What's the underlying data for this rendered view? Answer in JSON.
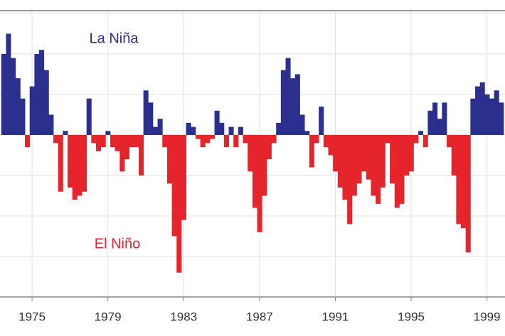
{
  "chart_data": {
    "type": "bar",
    "annotations": [
      {
        "text": "La Niña",
        "color": "#2b2f8e"
      },
      {
        "text": "El Niño",
        "color": "#e5252b"
      }
    ],
    "x": [
      1973.5,
      1973.75,
      1974,
      1974.25,
      1974.5,
      1974.75,
      1975,
      1975.25,
      1975.5,
      1975.75,
      1976,
      1976.25,
      1976.5,
      1976.75,
      1977,
      1977.25,
      1977.5,
      1977.75,
      1978,
      1978.25,
      1978.5,
      1978.75,
      1979,
      1979.25,
      1979.5,
      1979.75,
      1980,
      1980.25,
      1980.5,
      1980.75,
      1981,
      1981.25,
      1981.5,
      1981.75,
      1982,
      1982.25,
      1982.5,
      1982.75,
      1983,
      1983.25,
      1983.5,
      1983.75,
      1984,
      1984.25,
      1984.5,
      1984.75,
      1985,
      1985.25,
      1985.5,
      1985.75,
      1986,
      1986.25,
      1986.5,
      1986.75,
      1987,
      1987.25,
      1987.5,
      1987.75,
      1988,
      1988.25,
      1988.5,
      1988.75,
      1989,
      1989.25,
      1989.5,
      1989.75,
      1990,
      1990.25,
      1990.5,
      1990.75,
      1991,
      1991.25,
      1991.5,
      1991.75,
      1992,
      1992.25,
      1992.5,
      1992.75,
      1993,
      1993.25,
      1993.5,
      1993.75,
      1994,
      1994.25,
      1994.5,
      1994.75,
      1995,
      1995.25,
      1995.5,
      1995.75,
      1996,
      1996.25,
      1996.5,
      1996.75,
      1997,
      1997.25,
      1997.5,
      1997.75,
      1998,
      1998.25,
      1998.5,
      1998.75,
      1999,
      1999.25,
      1999.5,
      1999.75
    ],
    "values": [
      2.0,
      2.5,
      1.9,
      1.4,
      0.9,
      -0.3,
      1.2,
      2.0,
      2.1,
      1.6,
      0.5,
      -0.2,
      -1.4,
      0.1,
      -1.3,
      -1.6,
      -1.5,
      -1.4,
      0.9,
      -0.2,
      -0.4,
      -0.3,
      0.1,
      -0.3,
      -0.4,
      -0.9,
      -0.6,
      -0.3,
      -0.3,
      -1.0,
      1.1,
      0.8,
      0.2,
      0.4,
      -0.3,
      -1.2,
      -2.5,
      -3.4,
      -2.1,
      0.3,
      0.2,
      -0.1,
      -0.3,
      -0.2,
      -0.1,
      0.6,
      0.3,
      -0.3,
      0.2,
      -0.3,
      0.2,
      -0.2,
      -0.9,
      -1.8,
      -2.4,
      -1.5,
      -0.6,
      -0.2,
      0.3,
      1.6,
      1.9,
      1.4,
      1.5,
      0.5,
      0.1,
      -0.8,
      -0.2,
      0.7,
      -0.3,
      -0.5,
      -0.9,
      -1.3,
      -1.6,
      -2.2,
      -1.5,
      -1.2,
      -0.9,
      -1.1,
      -1.5,
      -1.7,
      -1.3,
      -0.2,
      -1.2,
      -1.8,
      -1.7,
      -1.0,
      -0.9,
      -0.2,
      0.1,
      -0.3,
      0.6,
      0.8,
      0.4,
      0.8,
      -0.3,
      -1.0,
      -2.2,
      -2.3,
      -2.9,
      0.9,
      1.2,
      1.3,
      1.0,
      0.9,
      1.1,
      0.8
    ],
    "bar_width": 0.25,
    "positive_color": "#2b2f8e",
    "negative_color": "#e5252b",
    "xlim": [
      1973.31,
      1999.95
    ],
    "xticks": [
      1975,
      1979,
      1983,
      1987,
      1991,
      1995,
      1999
    ],
    "ylim": [
      -4,
      3.07
    ],
    "yticks": [
      -4,
      -3,
      -2,
      -1,
      0,
      1,
      2,
      3
    ],
    "grid": true
  }
}
